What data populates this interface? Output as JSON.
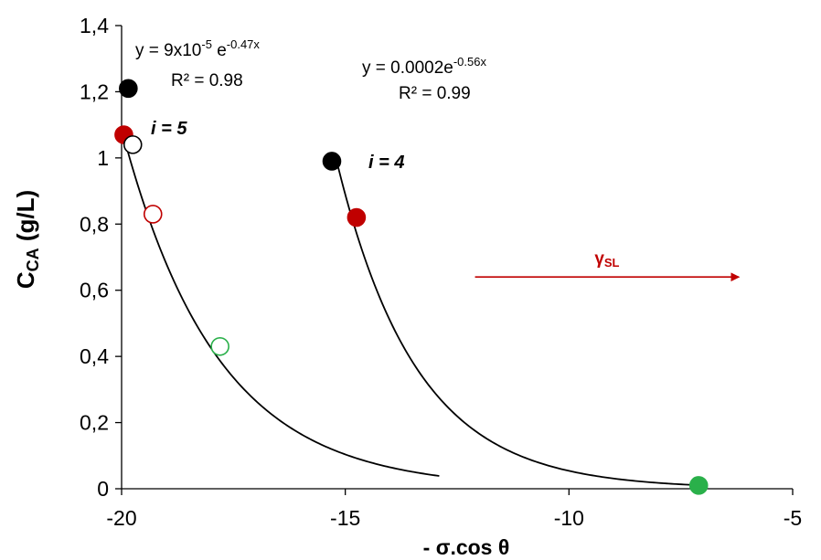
{
  "chart_data": {
    "type": "scatter",
    "title": "",
    "xlabel": "- σ.cos θ",
    "ylabel": "C",
    "ylabel_sub": "CA",
    "ylabel_unit": " (g/L)",
    "xlim": [
      -20,
      -5
    ],
    "ylim": [
      0,
      1.4
    ],
    "x_ticks": [
      "-20",
      "-15",
      "-10",
      "-5"
    ],
    "y_ticks": [
      "0",
      "0,2",
      "0,4",
      "0,6",
      "0,8",
      "1",
      "1,2",
      "1,4"
    ],
    "grid": false,
    "legend": "none",
    "points": [
      {
        "x": -19.85,
        "y": 1.21,
        "color": "#000000",
        "filled": true
      },
      {
        "x": -19.95,
        "y": 1.07,
        "color": "#c00000",
        "filled": true
      },
      {
        "x": -19.75,
        "y": 1.04,
        "color": "#000000",
        "filled": false
      },
      {
        "x": -19.3,
        "y": 0.83,
        "color": "#c00000",
        "filled": false
      },
      {
        "x": -17.8,
        "y": 0.43,
        "color": "#2ab04a",
        "filled": false
      },
      {
        "x": -15.3,
        "y": 0.99,
        "color": "#000000",
        "filled": true
      },
      {
        "x": -14.75,
        "y": 0.82,
        "color": "#c00000",
        "filled": true
      },
      {
        "x": -7.1,
        "y": 0.01,
        "color": "#2ab04a",
        "filled": true
      }
    ],
    "fits": [
      {
        "label": "i = 5",
        "a": 9e-05,
        "b": -0.47,
        "x_range": [
          -20,
          -12.9
        ],
        "eq_prefix": "y = 9x10",
        "eq_prefix_sup": "-5",
        "eq_mid": " e",
        "eq_exp": "-0.47x",
        "r2": "R² = 0.98"
      },
      {
        "label": "i = 4",
        "a": 0.0002,
        "b": -0.56,
        "x_range": [
          -15.2,
          -7.2
        ],
        "eq_prefix": "y = 0.0002e",
        "eq_prefix_sup": "",
        "eq_mid": "",
        "eq_exp": "-0.56x",
        "r2": "R² = 0.99"
      }
    ],
    "arrow": {
      "label": "γ",
      "label_sub": "SL",
      "x_from": -12.1,
      "x_to": -6.2,
      "y": 0.64,
      "color": "#c00000"
    }
  }
}
